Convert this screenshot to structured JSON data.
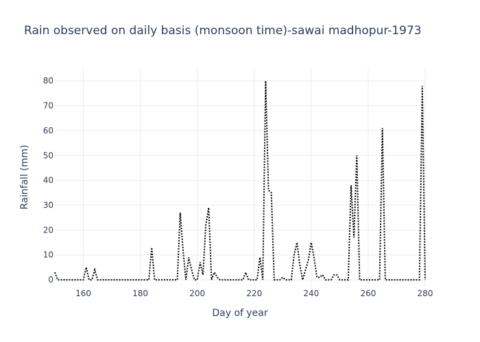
{
  "chart_data": {
    "type": "line",
    "title": "Rain observed on daily basis (monsoon time)-sawai madhopur-1973",
    "xlabel": "Day of year",
    "ylabel": "Rainfall (mm)",
    "xlim": [
      150,
      280
    ],
    "ylim": [
      -3,
      85
    ],
    "xticks": [
      160,
      180,
      200,
      220,
      240,
      260,
      280
    ],
    "yticks": [
      0,
      10,
      20,
      30,
      40,
      50,
      60,
      70,
      80
    ],
    "grid": true,
    "line_color": "#000000",
    "line_style": "dotted",
    "series": [
      {
        "x": [
          150,
          151,
          152,
          153,
          154,
          155,
          156,
          157,
          158,
          159,
          160,
          161,
          162,
          163,
          164,
          165,
          166,
          167,
          168,
          169,
          170,
          171,
          172,
          173,
          174,
          175,
          176,
          177,
          178,
          179,
          180,
          181,
          182,
          183,
          184,
          185,
          186,
          187,
          188,
          189,
          190,
          191,
          192,
          193,
          194,
          195,
          196,
          197,
          198,
          199,
          200,
          201,
          202,
          203,
          204,
          205,
          206,
          207,
          208,
          209,
          210,
          211,
          212,
          213,
          214,
          215,
          216,
          217,
          218,
          219,
          220,
          221,
          222,
          223,
          224,
          225,
          226,
          227,
          228,
          229,
          230,
          231,
          232,
          233,
          234,
          235,
          236,
          237,
          238,
          239,
          240,
          241,
          242,
          243,
          244,
          245,
          246,
          247,
          248,
          249,
          250,
          251,
          252,
          253,
          254,
          255,
          256,
          257,
          258,
          259,
          260,
          261,
          262,
          263,
          264,
          265,
          266,
          267,
          268,
          269,
          270,
          271,
          272,
          273,
          274,
          275,
          276,
          277,
          278,
          279,
          280
        ],
        "values": [
          3,
          0,
          0,
          0,
          0,
          0,
          0,
          0,
          0,
          0,
          0,
          5,
          0,
          0,
          4,
          0,
          0,
          0,
          0,
          0,
          0,
          0,
          0,
          0,
          0,
          0,
          0,
          0,
          0,
          0,
          0,
          0,
          0,
          0,
          13,
          0,
          0,
          0,
          0,
          0,
          0,
          0,
          0,
          0,
          27,
          12,
          0,
          9,
          4,
          0,
          0,
          7,
          2,
          22,
          29,
          0,
          3,
          1,
          0,
          0,
          0,
          0,
          0,
          0,
          0,
          0,
          0,
          3,
          0,
          0,
          0,
          0,
          9,
          0,
          80,
          36,
          35,
          0,
          0,
          0,
          1,
          0,
          0,
          0,
          10,
          15,
          6,
          0,
          4,
          8,
          15,
          9,
          1,
          1,
          2,
          0,
          0,
          0,
          2,
          2,
          0,
          0,
          0,
          0,
          38,
          17,
          50,
          0,
          0,
          0,
          0,
          0,
          0,
          0,
          0,
          61,
          0,
          0,
          0,
          0,
          0,
          0,
          0,
          0,
          0,
          0,
          0,
          0,
          0,
          78,
          0
        ]
      }
    ]
  }
}
